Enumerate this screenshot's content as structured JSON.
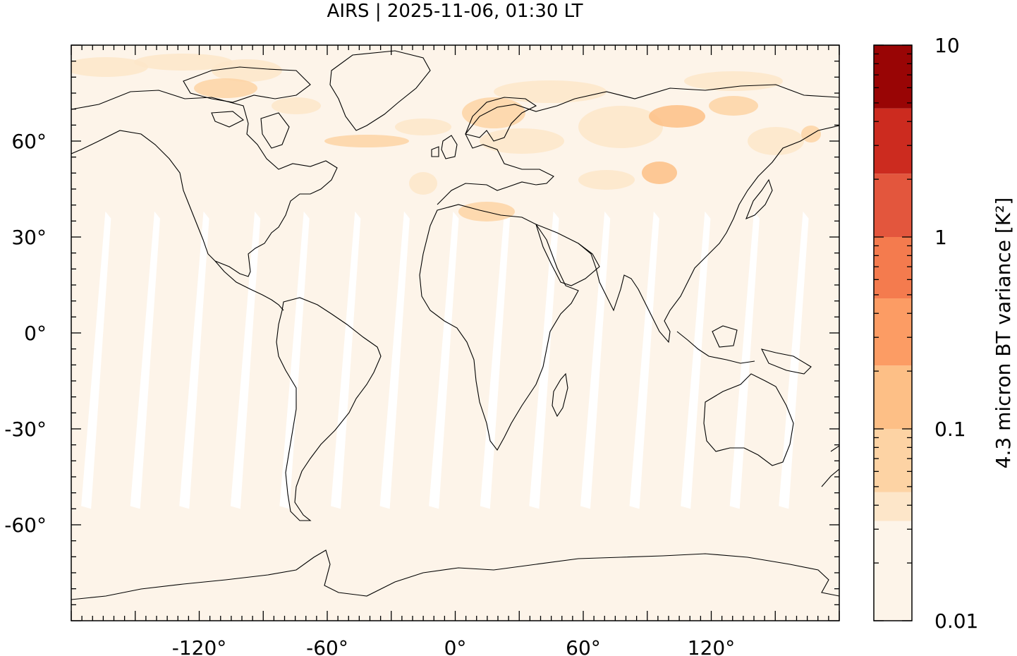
{
  "title": "AIRS | 2025-11-06, 01:30 LT",
  "map": {
    "lon_range": [
      -180,
      180
    ],
    "lat_range": [
      -90,
      90
    ],
    "x_ticks": [
      {
        "value": -120,
        "label": "-120°"
      },
      {
        "value": -60,
        "label": "-60°"
      },
      {
        "value": 0,
        "label": "0°"
      },
      {
        "value": 60,
        "label": "60°"
      },
      {
        "value": 120,
        "label": "120°"
      }
    ],
    "y_ticks": [
      {
        "value": 60,
        "label": "60°"
      },
      {
        "value": 30,
        "label": "30°"
      },
      {
        "value": 0,
        "label": "0°"
      },
      {
        "value": -30,
        "label": "-30°"
      },
      {
        "value": -60,
        "label": "-60°"
      }
    ],
    "background_color": "#fdf4e9",
    "gap_color": "#ffffff",
    "coast_color": "#000000"
  },
  "colorbar": {
    "label": "4.3 micron BT variance [K²]",
    "scale": "log",
    "range": [
      0.01,
      10
    ],
    "tick_labels": [
      {
        "value": 10,
        "label": "10"
      },
      {
        "value": 1,
        "label": "1"
      },
      {
        "value": 0.1,
        "label": "0.1"
      },
      {
        "value": 0.01,
        "label": "0.01"
      }
    ],
    "colors": [
      "#fdf4e9",
      "#fde6c9",
      "#fdd3a4",
      "#fdbf86",
      "#fc9c64",
      "#f47b4e",
      "#e3563d",
      "#cc2b1f",
      "#990505"
    ]
  }
}
